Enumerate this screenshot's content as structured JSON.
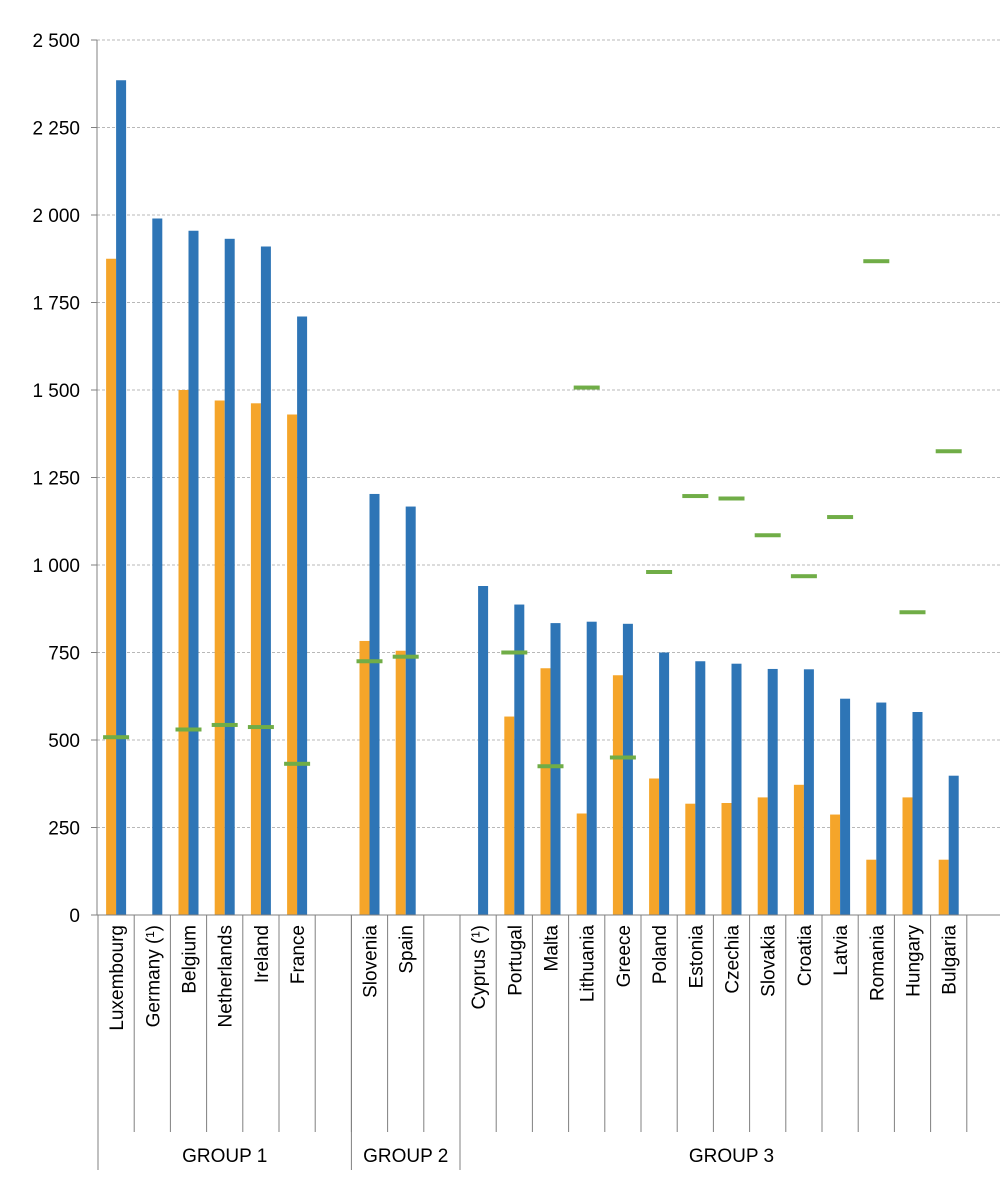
{
  "chart_data": {
    "type": "bar",
    "ylim": [
      0,
      2500
    ],
    "yticks": [
      0,
      250,
      500,
      750,
      1000,
      1250,
      1500,
      1750,
      2000,
      2250,
      2500
    ],
    "ytick_labels": [
      "0",
      "250",
      "500",
      "750",
      "1 000",
      "1 250",
      "1 500",
      "1 750",
      "2 000",
      "2 250",
      "2 500"
    ],
    "grid": true,
    "categories": [
      "Luxembourg",
      "Germany (¹)",
      "Belgium",
      "Netherlands",
      "Ireland",
      "France",
      "Slovenia",
      "Spain",
      "Cyprus (¹)",
      "Portugal",
      "Malta",
      "Lithuania",
      "Greece",
      "Poland",
      "Estonia",
      "Czechia",
      "Slovakia",
      "Croatia",
      "Latvia",
      "Romania",
      "Hungary",
      "Bulgaria"
    ],
    "groups": [
      {
        "label": "GROUP 1",
        "count": 6
      },
      {
        "label": "GROUP 2",
        "count": 2
      },
      {
        "label": "GROUP 3",
        "count": 14
      }
    ],
    "series": [
      {
        "color": "#f5a52a",
        "mark": "bar",
        "values": [
          1875,
          null,
          1500,
          1470,
          1462,
          1430,
          783,
          755,
          null,
          567,
          705,
          290,
          685,
          390,
          318,
          320,
          336,
          372,
          287,
          158,
          336,
          158
        ]
      },
      {
        "color": "#2e75b6",
        "mark": "bar",
        "values": [
          2385,
          1990,
          1955,
          1932,
          1910,
          1710,
          1203,
          1167,
          940,
          887,
          834,
          838,
          832,
          750,
          725,
          718,
          703,
          702,
          618,
          607,
          580,
          398
        ]
      },
      {
        "color": "#70ad47",
        "mark": "dash",
        "values": [
          508,
          null,
          530,
          543,
          537,
          432,
          725,
          738,
          null,
          750,
          425,
          1507,
          450,
          980,
          1197,
          1190,
          1085,
          968,
          1137,
          1868,
          865,
          1325
        ]
      }
    ]
  }
}
